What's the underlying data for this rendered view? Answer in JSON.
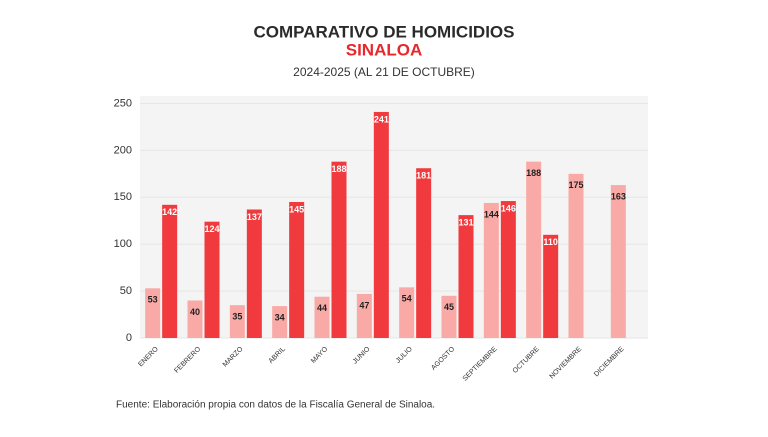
{
  "chart_data": {
    "type": "bar",
    "title": "COMPARATIVO DE HOMICIDIOS",
    "subtitle": "SINALOA",
    "period": "2024-2025 (AL 21 DE OCTUBRE)",
    "source": "Fuente: Elaboración propia con datos de la Fiscalía General de Sinaloa.",
    "categories": [
      "ENERO",
      "FEBRERO",
      "MARZO",
      "ABRIL",
      "MAYO",
      "JUNIO",
      "JULIO",
      "AGOSTO",
      "SEPTIEMBRE",
      "OCTUBRE",
      "NOVIEMBRE",
      "DICIEMBRE"
    ],
    "series": [
      {
        "color": "#f9aaa6",
        "values": [
          53,
          40,
          35,
          34,
          44,
          47,
          54,
          45,
          144,
          188,
          175,
          163
        ]
      },
      {
        "color": "#f03a3e",
        "values": [
          142,
          124,
          137,
          145,
          188,
          241,
          181,
          131,
          146,
          110,
          null,
          null
        ]
      }
    ],
    "ylim": [
      0,
      258
    ],
    "yticks": [
      0,
      50,
      100,
      150,
      200,
      250
    ],
    "grid": true
  }
}
